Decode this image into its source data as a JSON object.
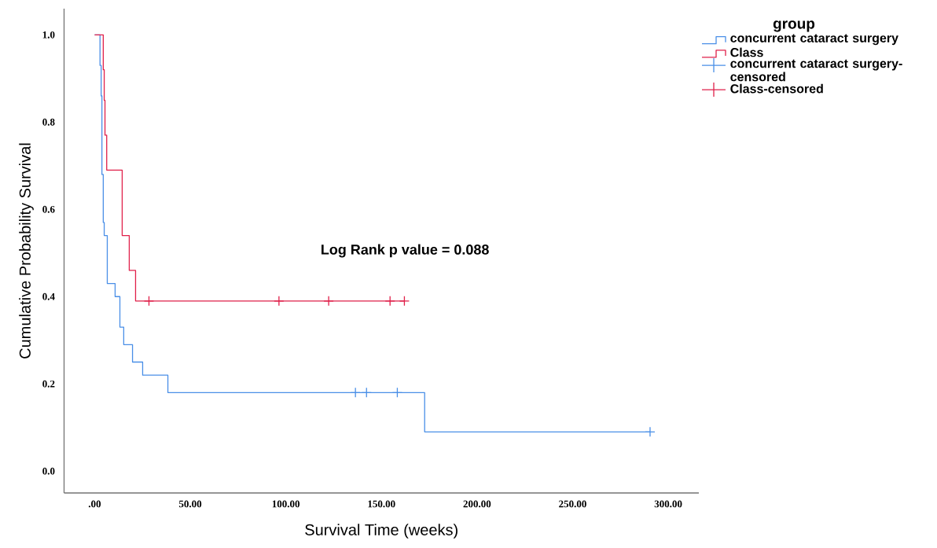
{
  "chart_data": {
    "type": "step",
    "xlabel": "Survival Time (weeks)",
    "ylabel": "Cumulative Probability Survival",
    "legend_title": "group",
    "annotations": [
      "Log Rank p value = 0.088"
    ],
    "series": [
      {
        "name": "concurrent cataract surgery",
        "color": "#4a8fe7",
        "x": [
          0,
          2.8,
          3.4,
          3.8,
          4.5,
          5,
          6.6,
          10.7,
          13.2,
          15.2,
          19.8,
          25.1,
          38.3,
          172.6,
          290.5
        ],
        "values": [
          1,
          0.93,
          0.86,
          0.68,
          0.57,
          0.54,
          0.43,
          0.4,
          0.33,
          0.29,
          0.25,
          0.22,
          0.18,
          0.09,
          0.09
        ]
      },
      {
        "name": "Class",
        "color": "#e0204a",
        "x": [
          0,
          4.5,
          5,
          5.4,
          6.3,
          14.4,
          18.1,
          21.4,
          162
        ],
        "values": [
          1,
          0.92,
          0.85,
          0.77,
          0.69,
          0.54,
          0.46,
          0.39,
          0.39
        ]
      },
      {
        "name": "concurrent cataract surgery-censored",
        "type": "scatter",
        "marker": "cross",
        "color": "#4a8fe7",
        "x": [
          136.4,
          142.2,
          158.3,
          290.5
        ],
        "values": [
          0.18,
          0.18,
          0.18,
          0.09
        ]
      },
      {
        "name": "Class-censored",
        "type": "scatter",
        "marker": "cross",
        "color": "#e0204a",
        "x": [
          28.4,
          96.4,
          122.4,
          154.5,
          162
        ],
        "values": [
          0.39,
          0.39,
          0.39,
          0.39,
          0.39
        ]
      }
    ],
    "xlim": [
      -16,
      316
    ],
    "ylim": [
      -0.05,
      1.06
    ],
    "xticks": [
      {
        "value": 0,
        "label": ".00"
      },
      {
        "value": 50,
        "label": "50.00"
      },
      {
        "value": 100,
        "label": "100.00"
      },
      {
        "value": 150,
        "label": "150.00"
      },
      {
        "value": 200,
        "label": "200.00"
      },
      {
        "value": 250,
        "label": "250.00"
      },
      {
        "value": 300,
        "label": "300.00"
      }
    ],
    "yticks": [
      {
        "value": 0,
        "label": "0.0"
      },
      {
        "value": 0.2,
        "label": "0.2"
      },
      {
        "value": 0.4,
        "label": "0.4"
      },
      {
        "value": 0.6,
        "label": "0.6"
      },
      {
        "value": 0.8,
        "label": "0.8"
      },
      {
        "value": 1.0,
        "label": "1.0"
      }
    ],
    "legend": "top right",
    "grid": false
  }
}
